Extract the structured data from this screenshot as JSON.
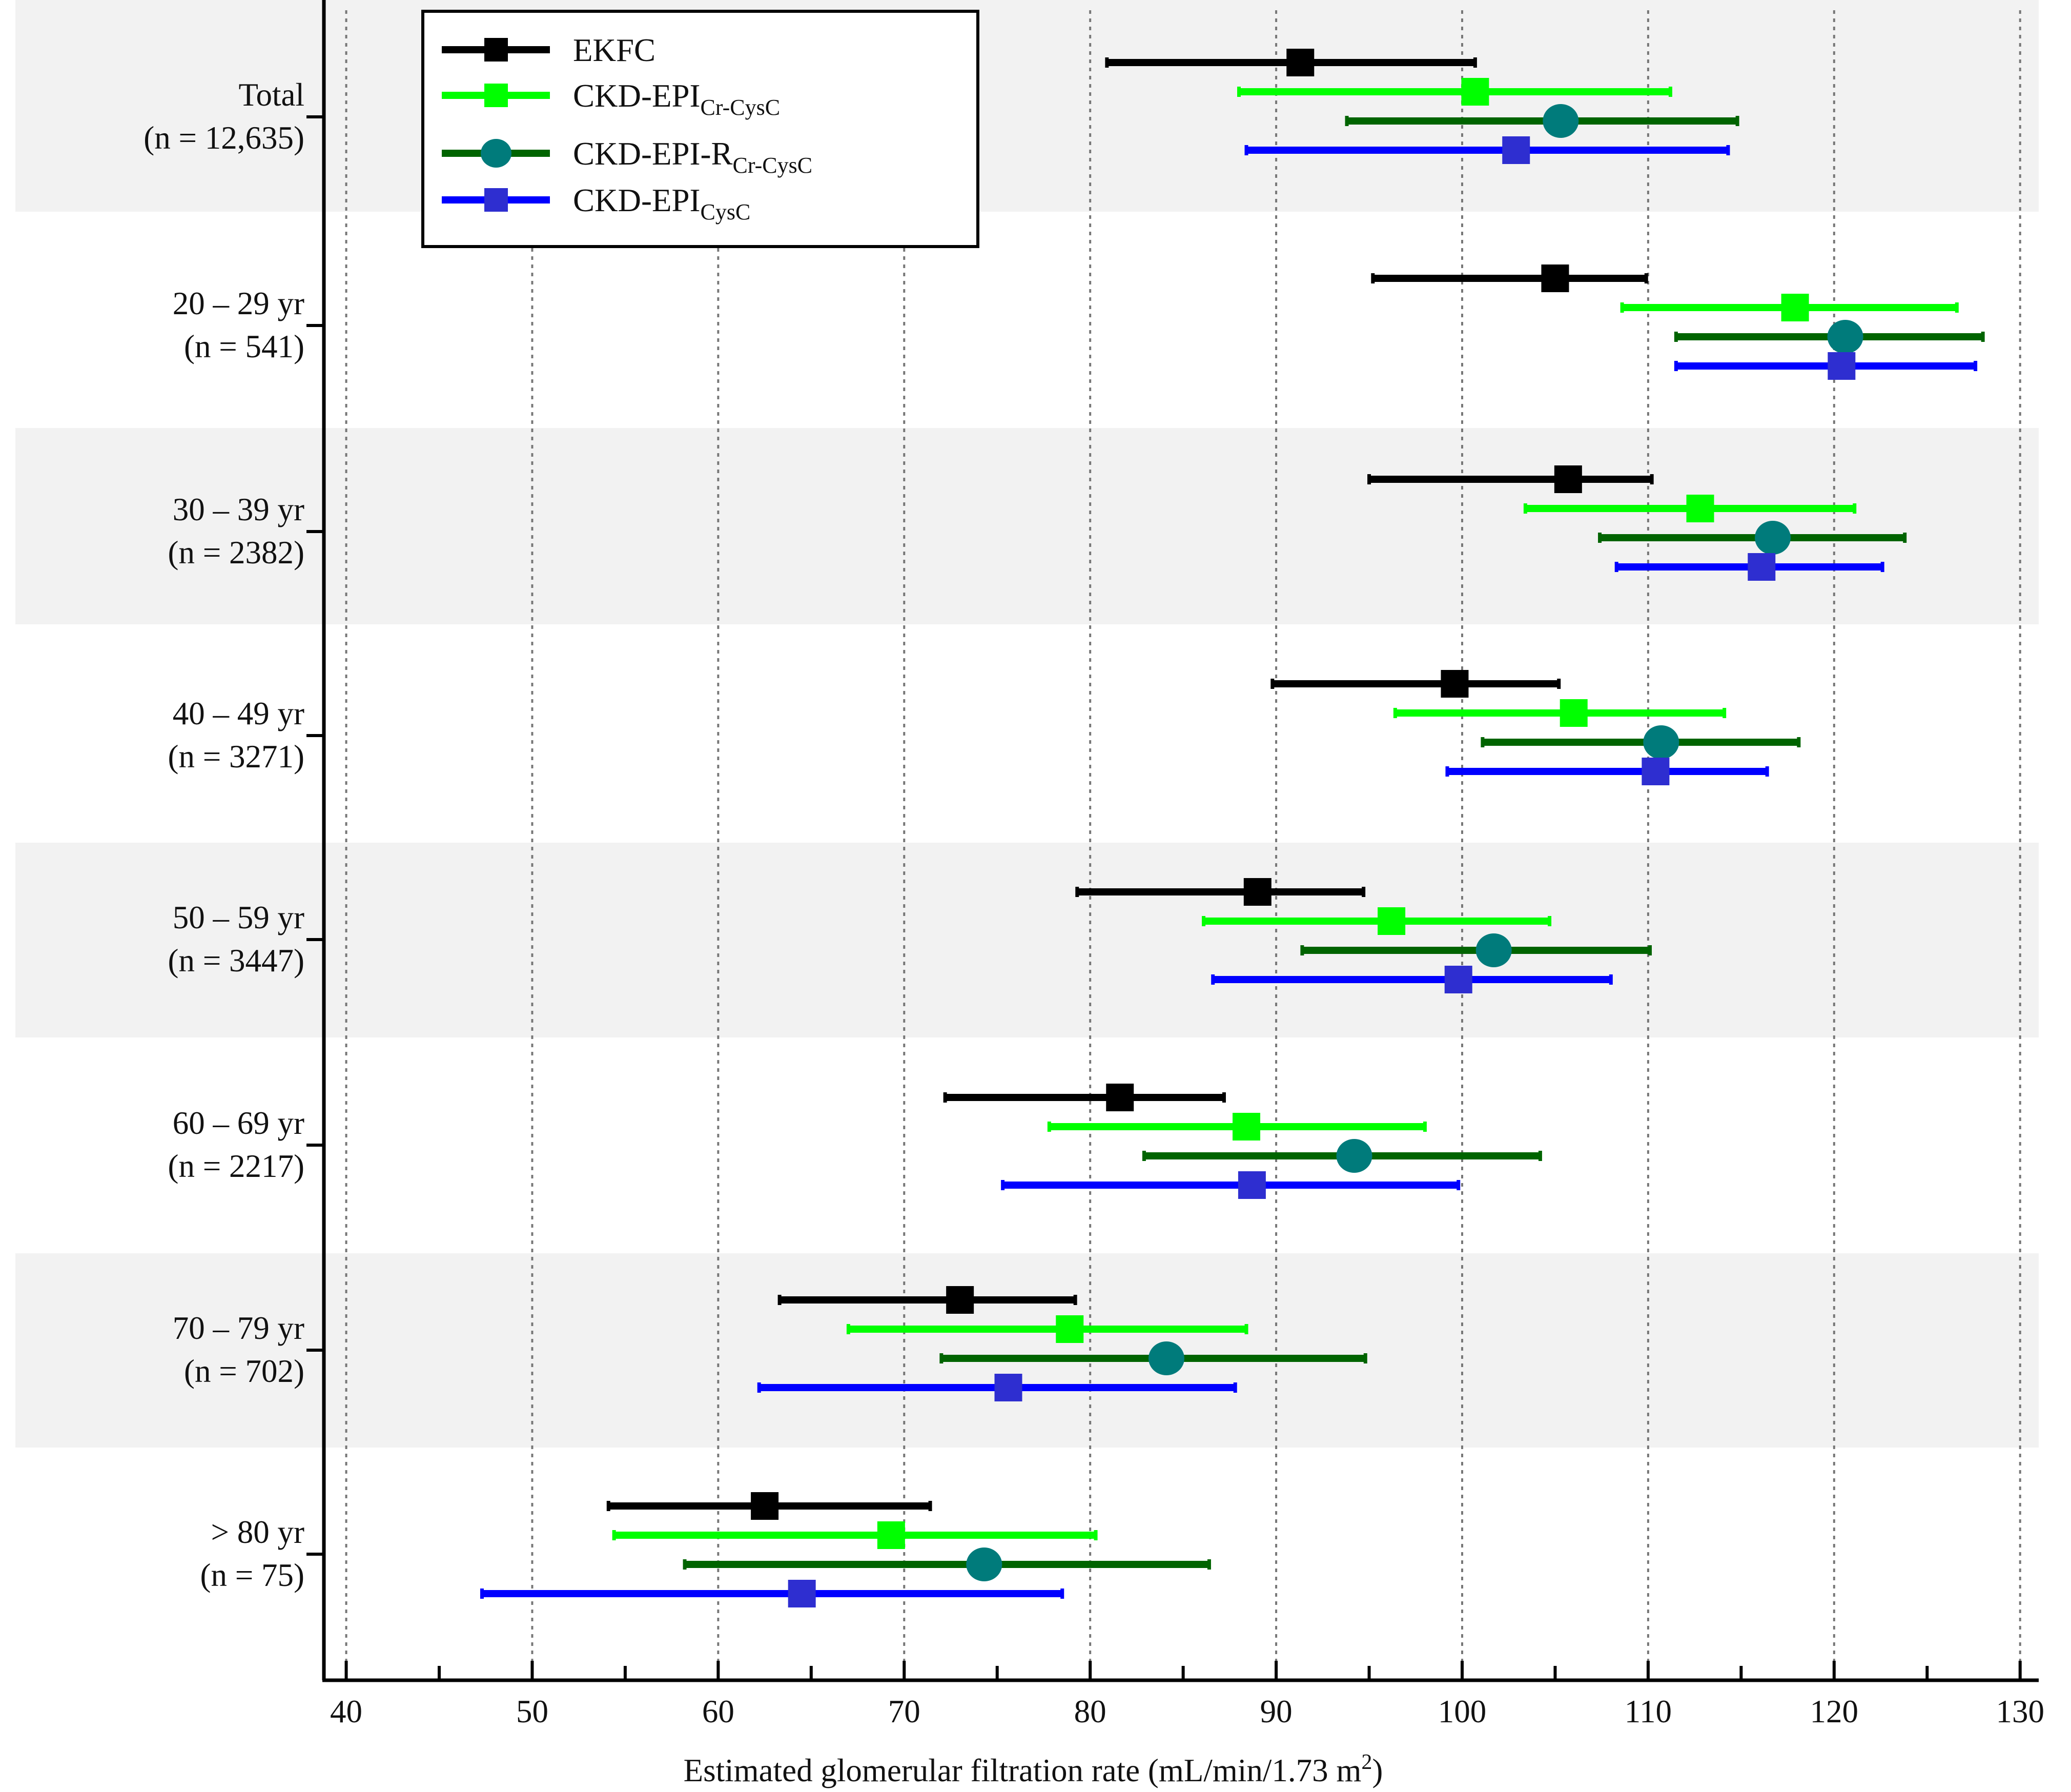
{
  "chart_data": {
    "type": "forest",
    "xlabel": "Estimated glomerular filtration rate (mL/min/1.73 m²)",
    "xlim": [
      38.8,
      131
    ],
    "xticks": [
      40,
      50,
      60,
      70,
      80,
      90,
      100,
      110,
      120,
      130
    ],
    "grid": "vertical-dotted",
    "legend_position": "top-left",
    "series": [
      {
        "name": "EKFC",
        "name_base": "EKFC",
        "name_sub": "",
        "color": "#000000",
        "marker": "square"
      },
      {
        "name": "CKD-EPICr-CysC",
        "name_base": "CKD-EPI",
        "name_sub": "Cr-CysC",
        "color": "#00ff00",
        "marker": "square"
      },
      {
        "name": "CKD-EPI-RCr-CysC",
        "name_base": "CKD-EPI-R",
        "name_sub": "Cr-CysC",
        "color": "#006400",
        "marker": "circle",
        "marker_color": "#007b7b"
      },
      {
        "name": "CKD-EPICysC",
        "name_base": "CKD-EPI",
        "name_sub": "CysC",
        "color": "#0000ff",
        "marker": "square",
        "marker_color": "#2e2ed0"
      }
    ],
    "groups": [
      {
        "label": "Total",
        "n": "(n = 12,635)",
        "shaded": true,
        "estimates": [
          {
            "mean": 91.3,
            "low": 80.9,
            "high": 100.7
          },
          {
            "mean": 100.7,
            "low": 88.0,
            "high": 111.2
          },
          {
            "mean": 105.3,
            "low": 93.8,
            "high": 114.8
          },
          {
            "mean": 102.9,
            "low": 88.4,
            "high": 114.3
          }
        ]
      },
      {
        "label": "20 – 29 yr",
        "n": "(n = 541)",
        "shaded": false,
        "estimates": [
          {
            "mean": 105.0,
            "low": 95.2,
            "high": 109.9
          },
          {
            "mean": 117.9,
            "low": 108.6,
            "high": 126.6
          },
          {
            "mean": 120.6,
            "low": 111.5,
            "high": 128.0
          },
          {
            "mean": 120.4,
            "low": 111.5,
            "high": 127.6
          }
        ]
      },
      {
        "label": "30 – 39 yr",
        "n": "(n = 2382)",
        "shaded": true,
        "estimates": [
          {
            "mean": 105.7,
            "low": 95.0,
            "high": 110.2
          },
          {
            "mean": 112.8,
            "low": 103.4,
            "high": 121.1
          },
          {
            "mean": 116.7,
            "low": 107.4,
            "high": 123.8
          },
          {
            "mean": 116.1,
            "low": 108.3,
            "high": 122.6
          }
        ]
      },
      {
        "label": "40 – 49 yr",
        "n": "(n = 3271)",
        "shaded": false,
        "estimates": [
          {
            "mean": 99.6,
            "low": 89.8,
            "high": 105.2
          },
          {
            "mean": 106.0,
            "low": 96.4,
            "high": 114.1
          },
          {
            "mean": 110.7,
            "low": 101.1,
            "high": 118.1
          },
          {
            "mean": 110.4,
            "low": 99.2,
            "high": 116.4
          }
        ]
      },
      {
        "label": "50 – 59 yr",
        "n": "(n = 3447)",
        "shaded": true,
        "estimates": [
          {
            "mean": 89.0,
            "low": 79.3,
            "high": 94.7
          },
          {
            "mean": 96.2,
            "low": 86.1,
            "high": 104.7
          },
          {
            "mean": 101.7,
            "low": 91.4,
            "high": 110.1
          },
          {
            "mean": 99.8,
            "low": 86.6,
            "high": 108.0
          }
        ]
      },
      {
        "label": "60 – 69 yr",
        "n": "(n = 2217)",
        "shaded": false,
        "estimates": [
          {
            "mean": 81.6,
            "low": 72.2,
            "high": 87.2
          },
          {
            "mean": 88.4,
            "low": 77.8,
            "high": 98.0
          },
          {
            "mean": 94.2,
            "low": 82.9,
            "high": 104.2
          },
          {
            "mean": 88.7,
            "low": 75.3,
            "high": 99.8
          }
        ]
      },
      {
        "label": "70 – 79 yr",
        "n": "(n = 702)",
        "shaded": true,
        "estimates": [
          {
            "mean": 73.0,
            "low": 63.3,
            "high": 79.2
          },
          {
            "mean": 78.9,
            "low": 67.0,
            "high": 88.4
          },
          {
            "mean": 84.1,
            "low": 72.0,
            "high": 94.8
          },
          {
            "mean": 75.6,
            "low": 62.2,
            "high": 87.8
          }
        ]
      },
      {
        "label": "> 80 yr",
        "n": "(n = 75)",
        "shaded": false,
        "estimates": [
          {
            "mean": 62.5,
            "low": 54.1,
            "high": 71.4
          },
          {
            "mean": 69.3,
            "low": 54.4,
            "high": 80.3
          },
          {
            "mean": 74.3,
            "low": 58.2,
            "high": 86.4
          },
          {
            "mean": 64.5,
            "low": 47.3,
            "high": 78.5
          }
        ]
      }
    ]
  }
}
